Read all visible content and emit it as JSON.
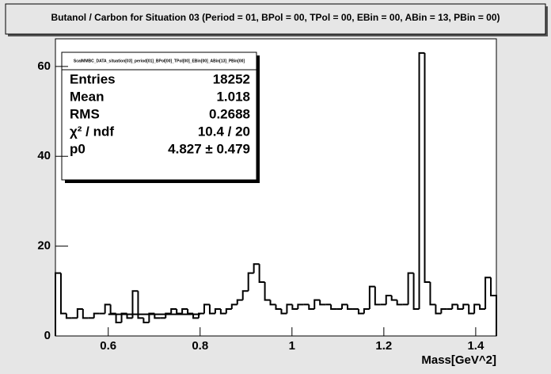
{
  "chart_data": {
    "type": "histogram",
    "title": "Butanol / Carbon for Situation 03 (Period = 01, BPol = 00, TPol = 00, EBin = 00, ABin = 13, PBin = 00)",
    "x_label": "Mass[GeV^2]",
    "bins": [
      0.485,
      0.497,
      0.509,
      0.521,
      0.533,
      0.545,
      0.557,
      0.569,
      0.581,
      0.593,
      0.605,
      0.617,
      0.629,
      0.641,
      0.653,
      0.665,
      0.677,
      0.689,
      0.701,
      0.713,
      0.725,
      0.737,
      0.749,
      0.761,
      0.773,
      0.785,
      0.797,
      0.809,
      0.821,
      0.833,
      0.845,
      0.857,
      0.869,
      0.881,
      0.893,
      0.905,
      0.917,
      0.929,
      0.941,
      0.953,
      0.965,
      0.977,
      0.989,
      1.001,
      1.013,
      1.025,
      1.037,
      1.049,
      1.061,
      1.073,
      1.085,
      1.097,
      1.109,
      1.121,
      1.133,
      1.145,
      1.157,
      1.169,
      1.181,
      1.193,
      1.205,
      1.217,
      1.229,
      1.241,
      1.253,
      1.265,
      1.277,
      1.289,
      1.301,
      1.313,
      1.325,
      1.337,
      1.349,
      1.361,
      1.373,
      1.385,
      1.397,
      1.409,
      1.421,
      1.433,
      1.445
    ],
    "values": [
      14,
      5,
      4,
      4,
      6,
      4,
      4,
      5,
      5,
      7,
      5,
      3,
      5,
      4,
      10,
      4,
      3,
      5,
      4,
      4,
      5,
      6,
      5,
      6,
      5,
      4,
      5,
      7,
      5,
      6,
      5,
      6,
      7,
      8,
      10,
      14,
      16,
      12,
      8,
      7,
      6,
      5,
      7,
      6,
      7,
      7,
      6,
      8,
      7,
      7,
      6,
      6,
      7,
      6,
      6,
      5,
      6,
      11,
      7,
      7,
      9,
      8,
      7,
      7,
      14,
      6,
      63,
      12,
      7,
      5,
      6,
      6,
      7,
      6,
      7,
      5,
      7,
      6,
      13,
      9
    ],
    "color": "#000000",
    "xlim": [
      0.485,
      1.445
    ],
    "xticks": [
      0.6,
      0.8,
      1,
      1.2,
      1.4
    ],
    "ylim": [
      0,
      66.15
    ],
    "yticks": [
      0,
      20,
      40,
      60
    ],
    "fit_line": {
      "x": [
        0.6,
        0.8
      ],
      "y": [
        4.827,
        4.827
      ]
    },
    "stats": {
      "title": "ScalMMBC_DATA_situation[03]_period[01]_BPol[00]_TPol[00]_EBin[00]_ABin[13]_PBin[00]",
      "rows": [
        [
          "Entries",
          "18252"
        ],
        [
          "Mean",
          "1.018"
        ],
        [
          "RMS",
          "0.2688"
        ],
        [
          "χ² / ndf",
          "10.4 / 20"
        ],
        [
          "p0",
          "4.827 ± 0.479"
        ]
      ]
    }
  }
}
